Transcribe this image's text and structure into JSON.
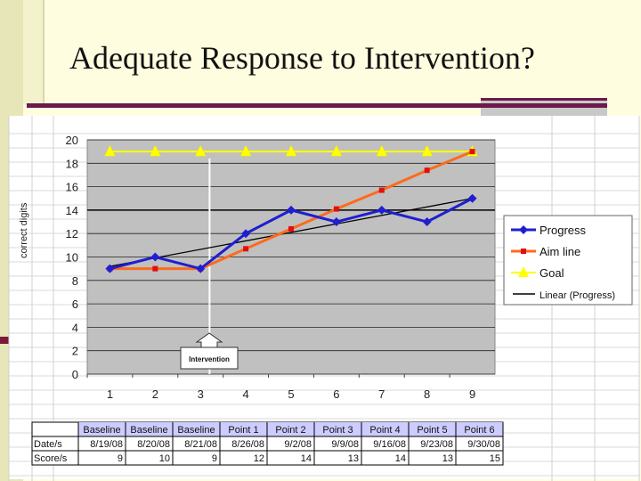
{
  "slide": {
    "title": "Adequate Response to Intervention?"
  },
  "chart_data": {
    "type": "line",
    "x": [
      1,
      2,
      3,
      4,
      5,
      6,
      7,
      8,
      9
    ],
    "ylabel": "correct digits",
    "ylim": [
      0,
      20
    ],
    "yticks": [
      0,
      2,
      4,
      6,
      8,
      10,
      12,
      14,
      16,
      18,
      20
    ],
    "grid": true,
    "legend_position": "right",
    "series": [
      {
        "name": "Progress",
        "values": [
          9,
          10,
          9,
          12,
          14,
          13,
          14,
          13,
          15
        ],
        "color": "#1f1fd0",
        "marker": "diamond"
      },
      {
        "name": "Aim line",
        "values": [
          9,
          9,
          9,
          10.7,
          12.4,
          14.1,
          15.7,
          17.4,
          19
        ],
        "color": "#ff6a1a",
        "marker": "circle"
      },
      {
        "name": "Goal",
        "values": [
          19,
          19,
          19,
          19,
          19,
          19,
          19,
          19,
          19
        ],
        "color": "#ffff00",
        "marker": "triangle"
      },
      {
        "name": "Linear (Progress)",
        "trend": [
          9.2,
          15.0
        ],
        "color": "#000000"
      }
    ],
    "annotation": {
      "label": "Intervention",
      "x": 3.2
    }
  },
  "table": {
    "row_labels": [
      "Date/s",
      "Score/s"
    ],
    "headers": [
      "Baseline",
      "Baseline",
      "Baseline",
      "Point 1",
      "Point 2",
      "Point 3",
      "Point 4",
      "Point 5",
      "Point 6"
    ],
    "dates": [
      "8/19/08",
      "8/20/08",
      "8/21/08",
      "8/26/08",
      "9/2/08",
      "9/9/08",
      "9/16/08",
      "9/23/08",
      "9/30/08"
    ],
    "scores": [
      9,
      10,
      9,
      12,
      14,
      13,
      14,
      13,
      15
    ]
  },
  "colors": {
    "plot_bg": "#c0c0c0",
    "accent_rule": "#6b1a4a",
    "slide_bg": "#fffde0"
  }
}
